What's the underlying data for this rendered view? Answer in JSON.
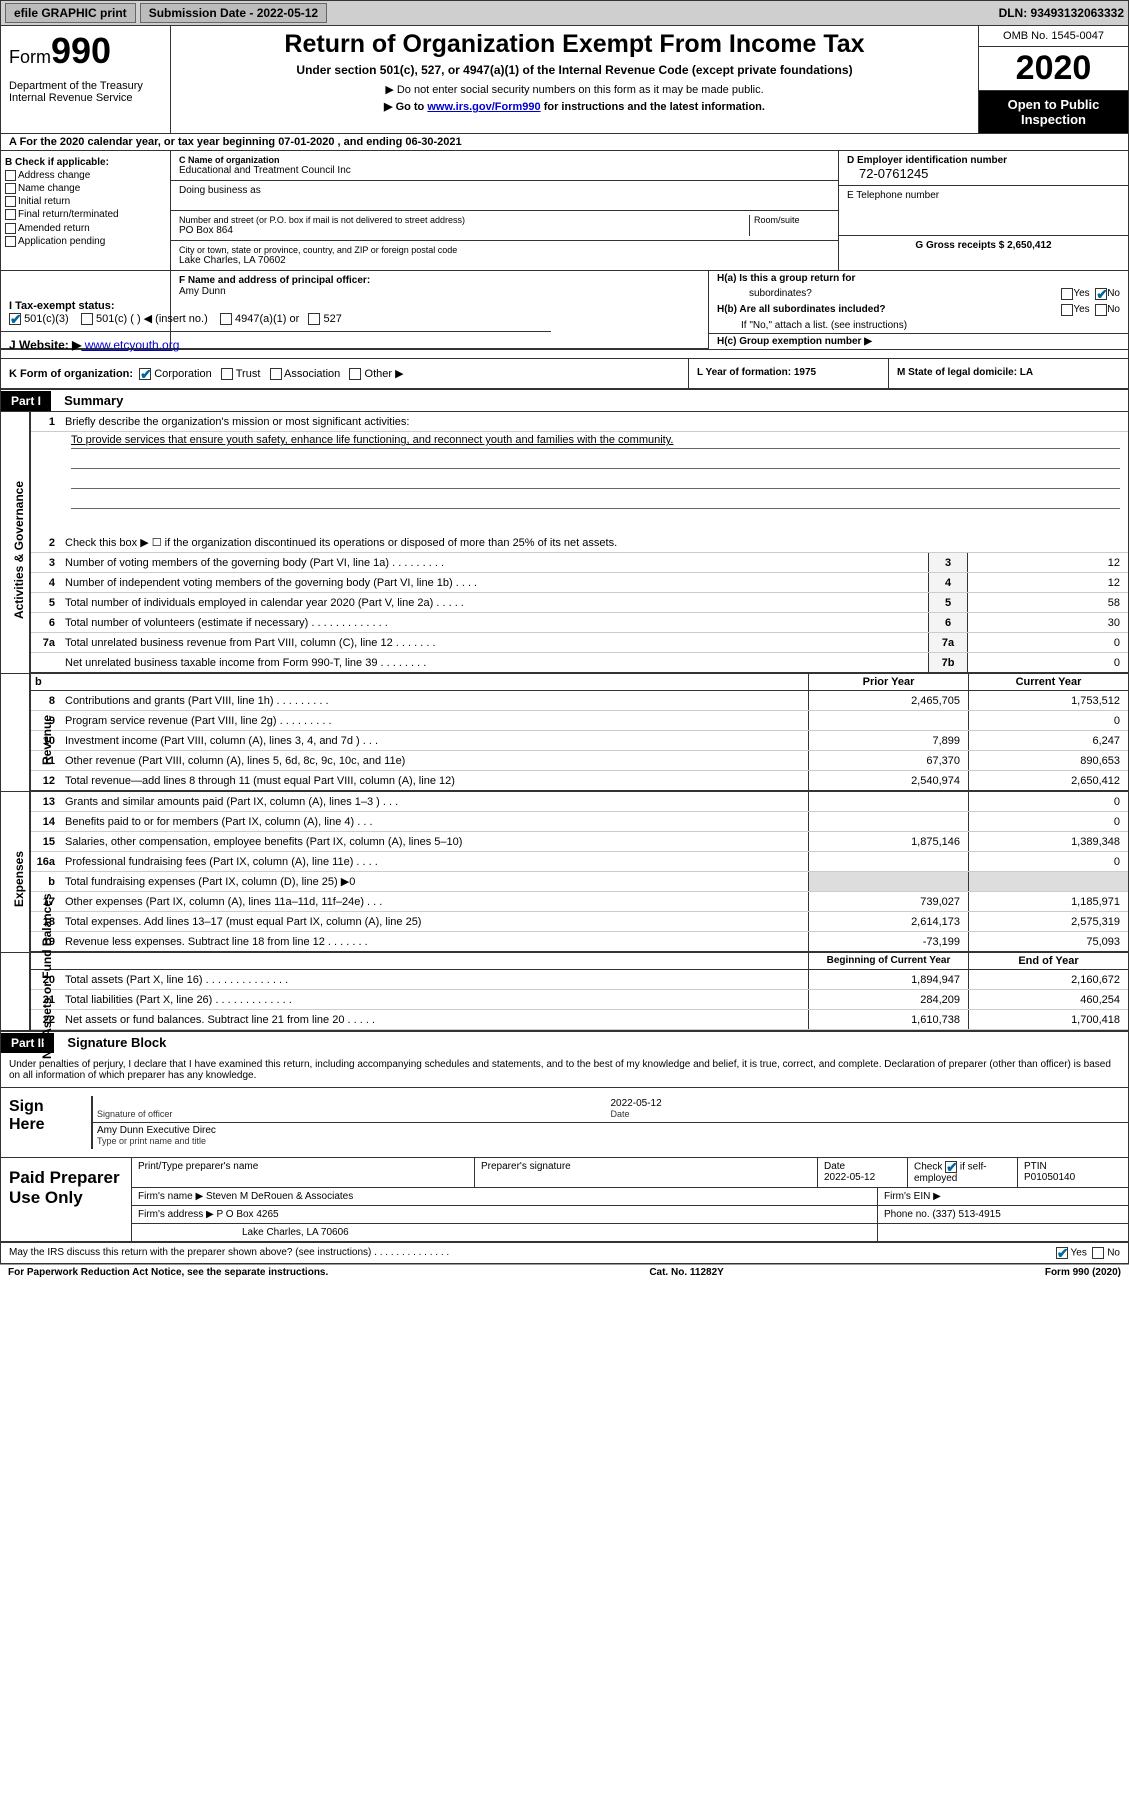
{
  "topbar": {
    "efile": "efile GRAPHIC print",
    "submission_label": "Submission Date - 2022-05-12",
    "dln": "DLN: 93493132063332"
  },
  "header": {
    "form_word": "Form",
    "form_num": "990",
    "dept": "Department of the Treasury\nInternal Revenue Service",
    "title": "Return of Organization Exempt From Income Tax",
    "subtitle": "Under section 501(c), 527, or 4947(a)(1) of the Internal Revenue Code (except private foundations)",
    "hint1": "▶ Do not enter social security numbers on this form as it may be made public.",
    "hint2_pre": "▶ Go to ",
    "hint2_link": "www.irs.gov/Form990",
    "hint2_post": " for instructions and the latest information.",
    "omb": "OMB No. 1545-0047",
    "year": "2020",
    "public": "Open to Public Inspection"
  },
  "row_a": "A For the 2020 calendar year, or tax year beginning 07-01-2020    , and ending 06-30-2021",
  "col_b": {
    "label": "B Check if applicable:",
    "items": [
      "Address change",
      "Name change",
      "Initial return",
      "Final return/terminated",
      "Amended return",
      "Application pending"
    ]
  },
  "col_c": {
    "name_label": "C Name of organization",
    "name": "Educational and Treatment Council Inc",
    "dba_label": "Doing business as",
    "street_label": "Number and street (or P.O. box if mail is not delivered to street address)",
    "room_label": "Room/suite",
    "street": "PO Box 864",
    "city_label": "City or town, state or province, country, and ZIP or foreign postal code",
    "city": "Lake Charles, LA  70602"
  },
  "col_d": {
    "ein_label": "D Employer identification number",
    "ein": "72-0761245",
    "tel_label": "E Telephone number",
    "gross_label": "G Gross receipts $ 2,650,412"
  },
  "col_f": {
    "label": "F  Name and address of principal officer:",
    "name": "Amy Dunn"
  },
  "col_h": {
    "a": "H(a)  Is this a group return for",
    "a2": "subordinates?",
    "b": "H(b)  Are all subordinates included?",
    "b2": "If \"No,\" attach a list. (see instructions)",
    "c": "H(c)  Group exemption number ▶",
    "yes": "Yes",
    "no": "No"
  },
  "row_i": {
    "label": "I    Tax-exempt status:",
    "opts": [
      "501(c)(3)",
      "501(c) (  ) ◀ (insert no.)",
      "4947(a)(1) or",
      "527"
    ]
  },
  "row_j": {
    "label": "J   Website: ▶",
    "url": "  www.etcyouth.org"
  },
  "row_k": {
    "label": "K Form of organization:",
    "opts": [
      "Corporation",
      "Trust",
      "Association",
      "Other ▶"
    ],
    "l": "L Year of formation: 1975",
    "m": "M State of legal domicile: LA"
  },
  "part1": {
    "hdr": "Part I",
    "title": "Summary",
    "l1": "Briefly describe the organization's mission or most significant activities:",
    "mission": "To provide services that ensure youth safety, enhance life functioning, and reconnect youth and families with the community.",
    "l2": "Check this box ▶ ☐  if the organization discontinued its operations or disposed of more than 25% of its net assets.",
    "lines_gov": [
      {
        "n": "3",
        "t": "Number of voting members of the governing body (Part VI, line 1a)   .   .   .   .   .   .   .   .   .",
        "b": "3",
        "v": "12"
      },
      {
        "n": "4",
        "t": "Number of independent voting members of the governing body (Part VI, line 1b)   .   .   .   .",
        "b": "4",
        "v": "12"
      },
      {
        "n": "5",
        "t": "Total number of individuals employed in calendar year 2020 (Part V, line 2a)  .   .   .   .   .",
        "b": "5",
        "v": "58"
      },
      {
        "n": "6",
        "t": "Total number of volunteers (estimate if necessary)   .   .   .   .   .   .   .   .   .   .   .   .   .",
        "b": "6",
        "v": "30"
      },
      {
        "n": "7a",
        "t": "Total unrelated business revenue from Part VIII, column (C), line 12   .   .   .   .   .   .   .",
        "b": "7a",
        "v": "0"
      },
      {
        "n": "",
        "t": "Net unrelated business taxable income from Form 990-T, line 39   .   .   .   .   .   .   .   .",
        "b": "7b",
        "v": "0"
      }
    ],
    "prior": "Prior Year",
    "current": "Current Year",
    "lines_rev": [
      {
        "n": "8",
        "t": "Contributions and grants (Part VIII, line 1h)   .   .   .   .   .   .   .   .   .",
        "p": "2,465,705",
        "c": "1,753,512"
      },
      {
        "n": "9",
        "t": "Program service revenue (Part VIII, line 2g)   .   .   .   .   .   .   .   .   .",
        "p": "",
        "c": "0"
      },
      {
        "n": "10",
        "t": "Investment income (Part VIII, column (A), lines 3, 4, and 7d )   .   .   .",
        "p": "7,899",
        "c": "6,247"
      },
      {
        "n": "11",
        "t": "Other revenue (Part VIII, column (A), lines 5, 6d, 8c, 9c, 10c, and 11e)",
        "p": "67,370",
        "c": "890,653"
      },
      {
        "n": "12",
        "t": "Total revenue—add lines 8 through 11 (must equal Part VIII, column (A), line 12)",
        "p": "2,540,974",
        "c": "2,650,412"
      }
    ],
    "lines_exp": [
      {
        "n": "13",
        "t": "Grants and similar amounts paid (Part IX, column (A), lines 1–3 )   .   .   .",
        "p": "",
        "c": "0"
      },
      {
        "n": "14",
        "t": "Benefits paid to or for members (Part IX, column (A), line 4)   .   .   .",
        "p": "",
        "c": "0"
      },
      {
        "n": "15",
        "t": "Salaries, other compensation, employee benefits (Part IX, column (A), lines 5–10)",
        "p": "1,875,146",
        "c": "1,389,348"
      },
      {
        "n": "16a",
        "t": "Professional fundraising fees (Part IX, column (A), line 11e)   .   .   .   .",
        "p": "",
        "c": "0"
      },
      {
        "n": "b",
        "t": "Total fundraising expenses (Part IX, column (D), line 25) ▶0",
        "p": "",
        "c": "",
        "grey": true
      },
      {
        "n": "17",
        "t": "Other expenses (Part IX, column (A), lines 11a–11d, 11f–24e)   .   .   .",
        "p": "739,027",
        "c": "1,185,971"
      },
      {
        "n": "18",
        "t": "Total expenses. Add lines 13–17 (must equal Part IX, column (A), line 25)",
        "p": "2,614,173",
        "c": "2,575,319"
      },
      {
        "n": "19",
        "t": "Revenue less expenses. Subtract line 18 from line 12  .   .   .   .   .   .   .",
        "p": "-73,199",
        "c": "75,093"
      }
    ],
    "begin": "Beginning of Current Year",
    "end": "End of Year",
    "lines_net": [
      {
        "n": "20",
        "t": "Total assets (Part X, line 16)   .   .   .   .   .   .   .   .   .   .   .   .   .   .",
        "p": "1,894,947",
        "c": "2,160,672"
      },
      {
        "n": "21",
        "t": "Total liabilities (Part X, line 26)   .   .   .   .   .   .   .   .   .   .   .   .   .",
        "p": "284,209",
        "c": "460,254"
      },
      {
        "n": "22",
        "t": "Net assets or fund balances. Subtract line 21 from line 20  .   .   .   .   .",
        "p": "1,610,738",
        "c": "1,700,418"
      }
    ]
  },
  "part2": {
    "hdr": "Part II",
    "title": "Signature Block",
    "penalty": "Under penalties of perjury, I declare that I have examined this return, including accompanying schedules and statements, and to the best of my knowledge and belief, it is true, correct, and complete. Declaration of preparer (other than officer) is based on all information of which preparer has any knowledge."
  },
  "sign": {
    "label": "Sign Here",
    "sig_officer": "Signature of officer",
    "date": "2022-05-12",
    "date_lbl": "Date",
    "name": "Amy Dunn  Executive Direc",
    "name_lbl": "Type or print name and title"
  },
  "prep": {
    "label": "Paid Preparer Use Only",
    "r1": {
      "a": "Print/Type preparer's name",
      "b": "Preparer's signature",
      "c": "Date\n2022-05-12",
      "d": "Check ☑ if self-employed",
      "e": "PTIN\nP01050140"
    },
    "r2": {
      "a": "Firm's name    ▶  Steven M DeRouen & Associates",
      "b": "Firm's EIN ▶"
    },
    "r3": {
      "a": "Firm's address ▶ P O Box 4265",
      "b": "Phone no. (337) 513-4915"
    },
    "r4": "Lake Charles, LA  70606"
  },
  "footer": {
    "discuss": "May the IRS discuss this return with the preparer shown above? (see instructions)   .   .   .   .   .   .   .   .   .   .   .   .   .   .",
    "yes": "Yes",
    "no": "No",
    "paperwork": "For Paperwork Reduction Act Notice, see the separate instructions.",
    "cat": "Cat. No. 11282Y",
    "form": "Form 990 (2020)"
  },
  "vlabels": {
    "gov": "Activities & Governance",
    "rev": "Revenue",
    "exp": "Expenses",
    "net": "Net Assets or Fund Balances"
  },
  "colors": {
    "topbar_bg": "#cfcfcf",
    "link": "#0000cc",
    "check": "#0066a0"
  }
}
